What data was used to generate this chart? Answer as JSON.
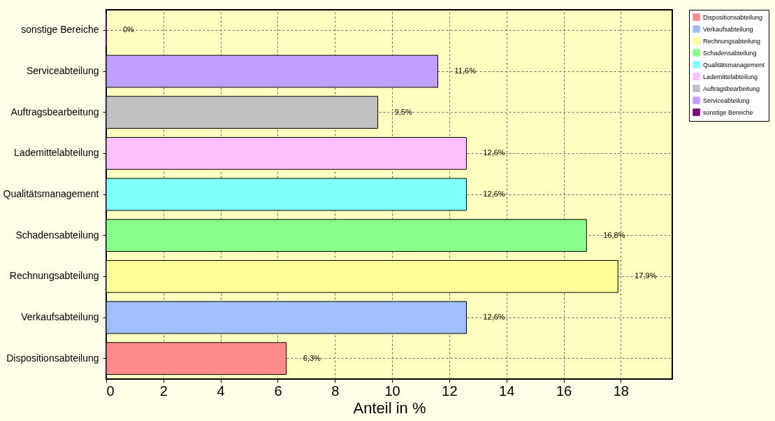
{
  "chart_data": {
    "type": "bar",
    "orientation": "horizontal",
    "xlabel": "Anteil in %",
    "categories": [
      "sonstige Bereiche",
      "Serviceabteilung",
      "Auftragsbearbeitung",
      "Lademittelabteilung",
      "Qualitätsmanagement",
      "Schadensabteilung",
      "Rechnungsabteilung",
      "Verkaufsabteilung",
      "Dispositionsabteilung"
    ],
    "series": [
      {
        "name": "Dispositionsabteilung",
        "color": "#ff8a8a",
        "values": [
          null,
          null,
          null,
          null,
          null,
          null,
          null,
          null,
          6.3
        ],
        "value_labels": [
          null,
          null,
          null,
          null,
          null,
          null,
          null,
          null,
          "6,3%"
        ]
      },
      {
        "name": "Verkaufsabteilung",
        "color": "#a0bfff",
        "values": [
          null,
          null,
          null,
          null,
          null,
          null,
          null,
          12.6,
          null
        ],
        "value_labels": [
          null,
          null,
          null,
          null,
          null,
          null,
          null,
          "12,6%",
          null
        ]
      },
      {
        "name": "Rechnungsabteilung",
        "color": "#ffff9a",
        "values": [
          null,
          null,
          null,
          null,
          null,
          null,
          17.9,
          null,
          null
        ],
        "value_labels": [
          null,
          null,
          null,
          null,
          null,
          null,
          "17,9%",
          null,
          null
        ]
      },
      {
        "name": "Schadensabteilung",
        "color": "#8aff8a",
        "values": [
          null,
          null,
          null,
          null,
          null,
          16.8,
          null,
          null,
          null
        ],
        "value_labels": [
          null,
          null,
          null,
          null,
          null,
          "16,8%",
          null,
          null,
          null
        ]
      },
      {
        "name": "Qualitätsmanagement",
        "color": "#80ffff",
        "values": [
          null,
          null,
          null,
          null,
          12.6,
          null,
          null,
          null,
          null
        ],
        "value_labels": [
          null,
          null,
          null,
          null,
          "12,6%",
          null,
          null,
          null,
          null
        ]
      },
      {
        "name": "Lademittelabteilung",
        "color": "#ffbfff",
        "values": [
          null,
          null,
          null,
          12.6,
          null,
          null,
          null,
          null,
          null
        ],
        "value_labels": [
          null,
          null,
          null,
          "12,6%",
          null,
          null,
          null,
          null,
          null
        ]
      },
      {
        "name": "Auftragsbearbeitung",
        "color": "#c0c0c0",
        "values": [
          null,
          null,
          9.5,
          null,
          null,
          null,
          null,
          null,
          null
        ],
        "value_labels": [
          null,
          null,
          "9,5%",
          null,
          null,
          null,
          null,
          null,
          null
        ]
      },
      {
        "name": "Serviceabteilung",
        "color": "#bf9fff",
        "values": [
          null,
          11.6,
          null,
          null,
          null,
          null,
          null,
          null,
          null
        ],
        "value_labels": [
          null,
          "11,6%",
          null,
          null,
          null,
          null,
          null,
          null,
          null
        ]
      },
      {
        "name": "sonstige Bereiche",
        "color": "#800080",
        "values": [
          0,
          null,
          null,
          null,
          null,
          null,
          null,
          null,
          null
        ],
        "value_labels": [
          "0%",
          null,
          null,
          null,
          null,
          null,
          null,
          null,
          null
        ]
      }
    ],
    "xlim": [
      0,
      19.8
    ],
    "xticks": [
      0,
      2,
      4,
      6,
      8,
      10,
      12,
      14,
      16,
      18
    ],
    "grid": true,
    "legend": "right"
  }
}
